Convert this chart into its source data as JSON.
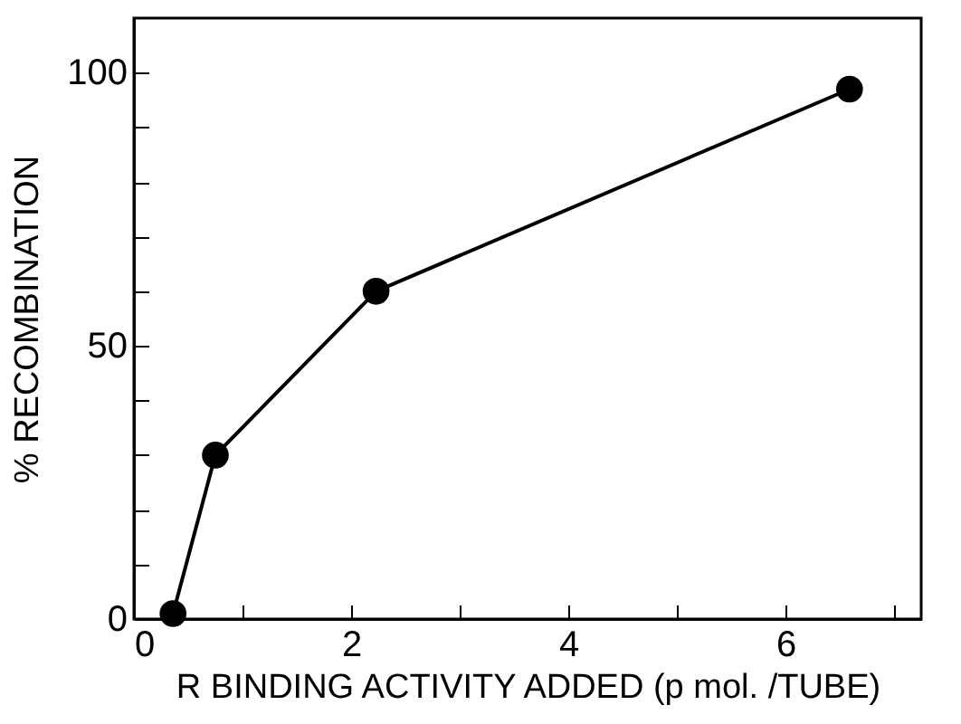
{
  "chart_data": {
    "type": "line",
    "xlabel": "R BINDING ACTIVITY ADDED (p mol. /TUBE)",
    "ylabel": "% RECOMBINATION",
    "x": [
      0.36,
      0.75,
      2.23,
      6.59
    ],
    "series": [
      {
        "color": "#000000",
        "values": [
          1,
          30,
          60,
          97
        ]
      }
    ],
    "xlim": [
      0,
      7.25
    ],
    "ylim": [
      0,
      110
    ],
    "xticks": [
      0,
      {
        "value": 1,
        "label": null
      },
      2,
      {
        "value": 3,
        "label": null
      },
      4,
      {
        "value": 5,
        "label": null
      },
      6,
      {
        "value": 7,
        "label": null
      }
    ],
    "yticks": [
      0,
      {
        "value": 10,
        "label": null
      },
      {
        "value": 20,
        "label": null
      },
      {
        "value": 30,
        "label": null
      },
      {
        "value": 40,
        "label": null
      },
      50,
      {
        "value": 60,
        "label": null
      },
      {
        "value": 70,
        "label": null
      },
      {
        "value": 80,
        "label": null
      },
      {
        "value": 90,
        "label": null
      },
      100
    ],
    "marker": "circle",
    "line_style": "solid",
    "grid": false
  }
}
